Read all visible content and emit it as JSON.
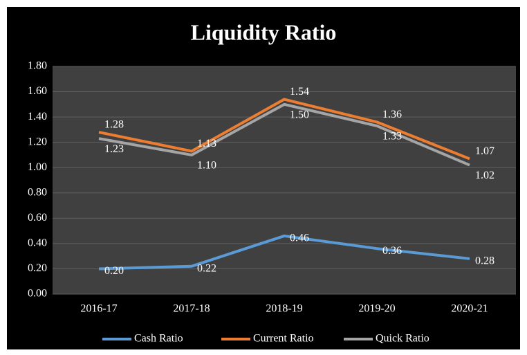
{
  "chart_data": {
    "type": "line",
    "title": "Liquidity Ratio",
    "categories": [
      "2016-17",
      "2017-18",
      "2018-19",
      "2019-20",
      "2020-21"
    ],
    "series": [
      {
        "name": "Cash Ratio",
        "color": "#5b9bd5",
        "values": [
          0.2,
          0.22,
          0.46,
          0.36,
          0.28
        ],
        "value_labels": [
          "0.20",
          "0.22",
          "0.46",
          "0.36",
          "0.28"
        ]
      },
      {
        "name": "Current Ratio",
        "color": "#ed7d31",
        "values": [
          1.28,
          1.13,
          1.54,
          1.36,
          1.07
        ],
        "value_labels": [
          "1.28",
          "1.13",
          "1.54",
          "1.36",
          "1.07"
        ]
      },
      {
        "name": "Quick Ratio",
        "color": "#a5a5a5",
        "values": [
          1.23,
          1.1,
          1.5,
          1.33,
          1.02
        ],
        "value_labels": [
          "1.23",
          "1.10",
          "1.50",
          "1.33",
          "1.02"
        ]
      }
    ],
    "ylim": [
      0,
      1.8
    ],
    "yticks": [
      {
        "value": 0,
        "label": "0.00"
      },
      {
        "value": 0.2,
        "label": "0.20"
      },
      {
        "value": 0.4,
        "label": "0.40"
      },
      {
        "value": 0.6,
        "label": "0.60"
      },
      {
        "value": 0.8,
        "label": "0.80"
      },
      {
        "value": 1.0,
        "label": "1.00"
      },
      {
        "value": 1.2,
        "label": "1.20"
      },
      {
        "value": 1.4,
        "label": "1.40"
      },
      {
        "value": 1.6,
        "label": "1.60"
      },
      {
        "value": 1.8,
        "label": "1.80"
      }
    ],
    "grid": true,
    "legend": "bottom"
  }
}
